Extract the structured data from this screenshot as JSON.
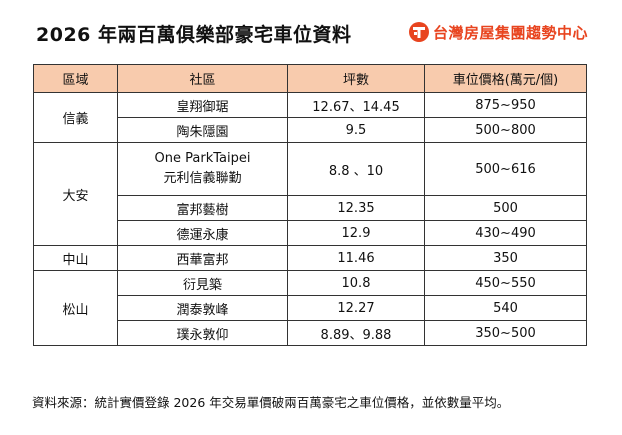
{
  "header": {
    "title": "2026 年兩百萬俱樂部豪宅車位資料",
    "brand": "台灣房屋集團趨勢中心",
    "brand_color": "#e8441f",
    "brand_logo_icon": "taiwan-realty-logo-icon"
  },
  "table": {
    "header_bg": "#f8cbad",
    "columns": [
      "區域",
      "社區",
      "坪數",
      "車位價格(萬元/個)"
    ],
    "groups": [
      {
        "area": "信義",
        "rows": [
          {
            "community": "皇翔御琚",
            "size": "12.67、14.45",
            "price": "875~950"
          },
          {
            "community": "陶朱隱園",
            "size": "9.5",
            "price": "500~800"
          }
        ]
      },
      {
        "area": "大安",
        "rows": [
          {
            "community_lines": [
              "One ParkTaipei",
              "元利信義聯勤"
            ],
            "size": "8.8 、10",
            "price": "500~616"
          },
          {
            "community": "富邦藝樹",
            "size": "12.35",
            "price": "500"
          },
          {
            "community": "德運永康",
            "size": "12.9",
            "price": "430~490"
          }
        ]
      },
      {
        "area": "中山",
        "rows": [
          {
            "community": "西華富邦",
            "size": "11.46",
            "price": "350"
          }
        ]
      },
      {
        "area": "松山",
        "rows": [
          {
            "community": "衍見築",
            "size": "10.8",
            "price": "450~550"
          },
          {
            "community": "潤泰敦峰",
            "size": "12.27",
            "price": "540"
          },
          {
            "community": "璞永敦仰",
            "size": "8.89、9.88",
            "price": "350~500"
          }
        ]
      }
    ]
  },
  "footnote": "資料來源：統計實價登錄 2026 年交易單價破兩百萬豪宅之車位價格，並依數量平均。"
}
